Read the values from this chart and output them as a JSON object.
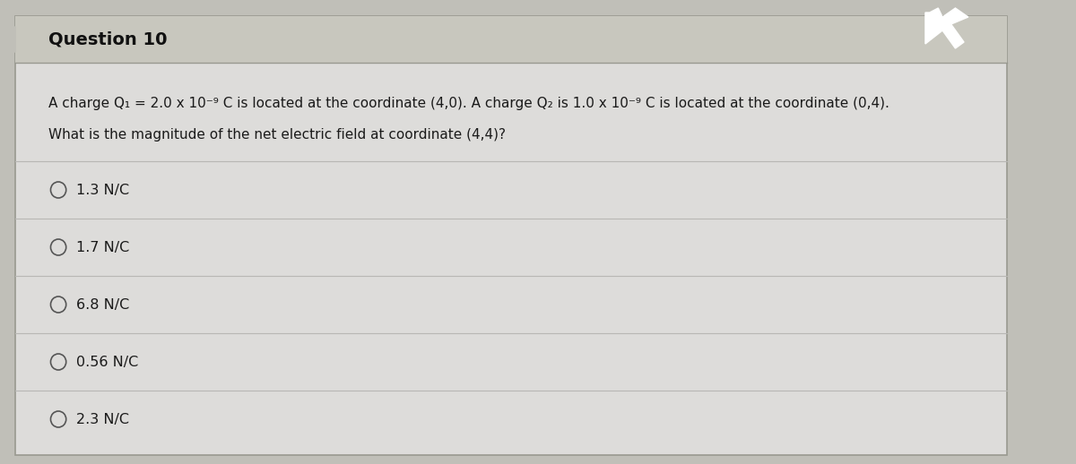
{
  "title": "Question 10",
  "question_line1": "A charge Q₁ = 2.0 x 10⁻⁹ C is located at the coordinate (4,0). A charge Q₂ is 1.0 x 10⁻⁹ C is located at the coordinate (0,4).",
  "question_line2": "What is the magnitude of the net electric field at coordinate (4,4)?",
  "options": [
    "1.3 N/C",
    "1.7 N/C",
    "6.8 N/C",
    "0.56 N/C",
    "2.3 N/C"
  ],
  "bg_color": "#b8b8b0",
  "outer_bg": "#c0bfb8",
  "box_color": "#d8d7d2",
  "header_color": "#c8c7be",
  "content_color": "#dddcda",
  "text_color": "#1a1a1a",
  "title_color": "#111111",
  "line_color": "#b8b7b4",
  "border_color": "#999990"
}
